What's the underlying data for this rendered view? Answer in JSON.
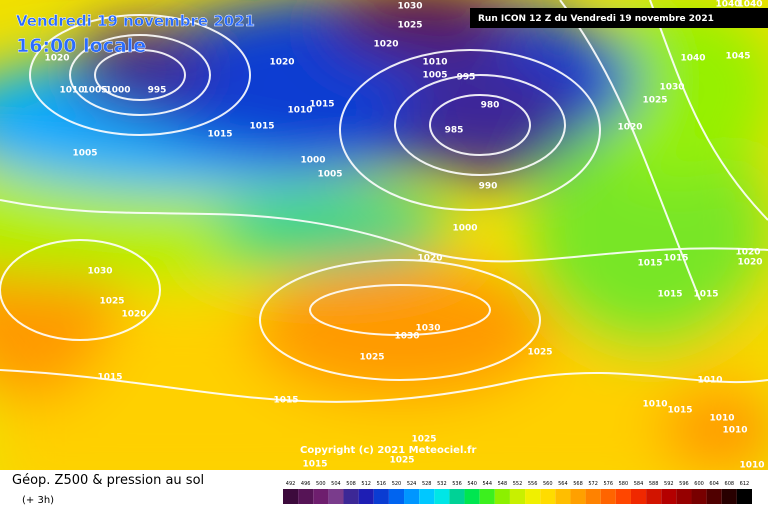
{
  "header": {
    "date": "Vendredi 19 novembre 2021",
    "time": "16:00 locale",
    "run": "Run ICON 12 Z du Vendredi 19 novembre 2021"
  },
  "copyright": "Copyright (c) 2021 Meteociel.fr",
  "footer": {
    "title": "Géop. Z500 & pression au sol",
    "step": "(+ 3h)"
  },
  "legend": {
    "values": [
      492,
      496,
      500,
      504,
      508,
      512,
      516,
      520,
      524,
      528,
      532,
      536,
      540,
      544,
      548,
      552,
      556,
      560,
      564,
      568,
      572,
      576,
      580,
      584,
      588,
      592,
      596,
      600,
      604,
      608,
      612
    ],
    "colors": [
      "#3c0a3c",
      "#561456",
      "#6e1e6e",
      "#7a3c8c",
      "#3c2896",
      "#1e1eb4",
      "#0a3cd2",
      "#0064f0",
      "#0096ff",
      "#00c8ff",
      "#00e6e6",
      "#00d296",
      "#00e650",
      "#3cf01e",
      "#8cf000",
      "#c8f000",
      "#f0f000",
      "#ffdc00",
      "#ffbe00",
      "#ffa000",
      "#ff8200",
      "#ff6400",
      "#ff4600",
      "#f02800",
      "#d21400",
      "#b40000",
      "#960000",
      "#780000",
      "#500000",
      "#280000",
      "#000000"
    ]
  },
  "isobar_labels": [
    "1020",
    "1010",
    "1005",
    "1000",
    "995",
    "1020",
    "1030",
    "1025",
    "1020",
    "1010",
    "1005",
    "995",
    "980",
    "985",
    "990",
    "1010",
    "1015",
    "1015",
    "1015",
    "1000",
    "1005",
    "1005",
    "1000",
    "1020",
    "1030",
    "1025",
    "1020",
    "1030",
    "1030",
    "1025",
    "1025",
    "1015",
    "1015",
    "1025",
    "1025",
    "1015",
    "1020",
    "1025",
    "1030",
    "1040",
    "1045",
    "1040",
    "1040",
    "1015",
    "1015",
    "1015",
    "1015",
    "1020",
    "1020",
    "1010",
    "1010",
    "1015",
    "1010",
    "1010",
    "1010"
  ]
}
